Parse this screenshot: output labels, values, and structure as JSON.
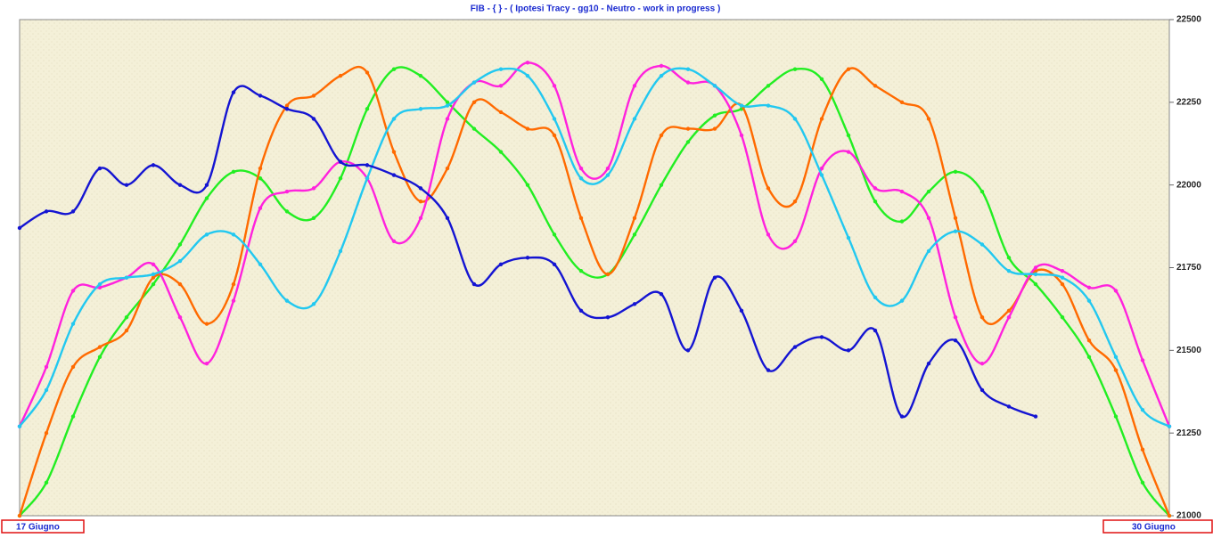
{
  "chart_data": {
    "type": "line",
    "title": "FIB  -  { } - ( Ipotesi Tracy - gg10 - Neutro - work in progress )",
    "categories": [
      "17 Giugno",
      null,
      null,
      null,
      null,
      null,
      null,
      null,
      null,
      null,
      null,
      null,
      null,
      null,
      null,
      null,
      null,
      null,
      null,
      null,
      null,
      null,
      null,
      null,
      null,
      null,
      null,
      null,
      null,
      null,
      null,
      null,
      null,
      null,
      null,
      null,
      null,
      null,
      null,
      null,
      null,
      null,
      null,
      "30 Giugno"
    ],
    "ylim": [
      21000,
      22500
    ],
    "yticks": [
      21000,
      21250,
      21500,
      21750,
      22000,
      22250,
      22500
    ],
    "series": [
      {
        "name": "green",
        "color": "#22ee22",
        "values": [
          21000,
          21100,
          21300,
          21480,
          21600,
          21700,
          21820,
          21960,
          22040,
          22020,
          21920,
          21900,
          22020,
          22230,
          22350,
          22330,
          22250,
          22170,
          22100,
          22000,
          21850,
          21740,
          21730,
          21850,
          22000,
          22130,
          22210,
          22230,
          22300,
          22350,
          22320,
          22150,
          21950,
          21890,
          21980,
          22040,
          21980,
          21780,
          21700,
          21600,
          21480,
          21300,
          21100,
          21000
        ]
      },
      {
        "name": "orange",
        "color": "#ff6a00",
        "values": [
          21000,
          21250,
          21450,
          21510,
          21560,
          21720,
          21700,
          21580,
          21700,
          22050,
          22240,
          22270,
          22330,
          22340,
          22100,
          21950,
          22050,
          22250,
          22220,
          22170,
          22150,
          21900,
          21730,
          21900,
          22150,
          22170,
          22170,
          22240,
          21990,
          21950,
          22200,
          22350,
          22300,
          22250,
          22200,
          21900,
          21600,
          21620,
          21740,
          21700,
          21530,
          21440,
          21200,
          21000
        ]
      },
      {
        "name": "magenta",
        "color": "#ff22dd",
        "values": [
          21270,
          21450,
          21680,
          21690,
          21720,
          21760,
          21600,
          21460,
          21650,
          21930,
          21980,
          21990,
          22070,
          22020,
          21830,
          21900,
          22200,
          22310,
          22300,
          22370,
          22300,
          22050,
          22050,
          22300,
          22360,
          22310,
          22300,
          22150,
          21850,
          21830,
          22050,
          22100,
          21990,
          21980,
          21900,
          21600,
          21460,
          21600,
          21750,
          21740,
          21690,
          21680,
          21470,
          21270
        ]
      },
      {
        "name": "cyan",
        "color": "#22c8f0",
        "values": [
          21270,
          21380,
          21580,
          21700,
          21720,
          21730,
          21770,
          21850,
          21850,
          21760,
          21650,
          21640,
          21800,
          22020,
          22200,
          22230,
          22240,
          22310,
          22350,
          22330,
          22200,
          22020,
          22030,
          22200,
          22330,
          22350,
          22300,
          22240,
          22240,
          22200,
          22030,
          21840,
          21660,
          21650,
          21800,
          21860,
          21820,
          21740,
          21730,
          21720,
          21650,
          21480,
          21320,
          21270
        ]
      },
      {
        "name": "blue",
        "color": "#1414d2",
        "values": [
          21870,
          21920,
          21920,
          22050,
          22000,
          22060,
          22000,
          22000,
          22280,
          22270,
          22230,
          22200,
          22070,
          22060,
          22030,
          21990,
          21900,
          21700,
          21760,
          21780,
          21760,
          21620,
          21600,
          21640,
          21670,
          21500,
          21720,
          21620,
          21440,
          21510,
          21540,
          21500,
          21560,
          21300,
          21460,
          21530,
          21380,
          21330,
          21300,
          null,
          null,
          null,
          null,
          null
        ]
      }
    ]
  }
}
